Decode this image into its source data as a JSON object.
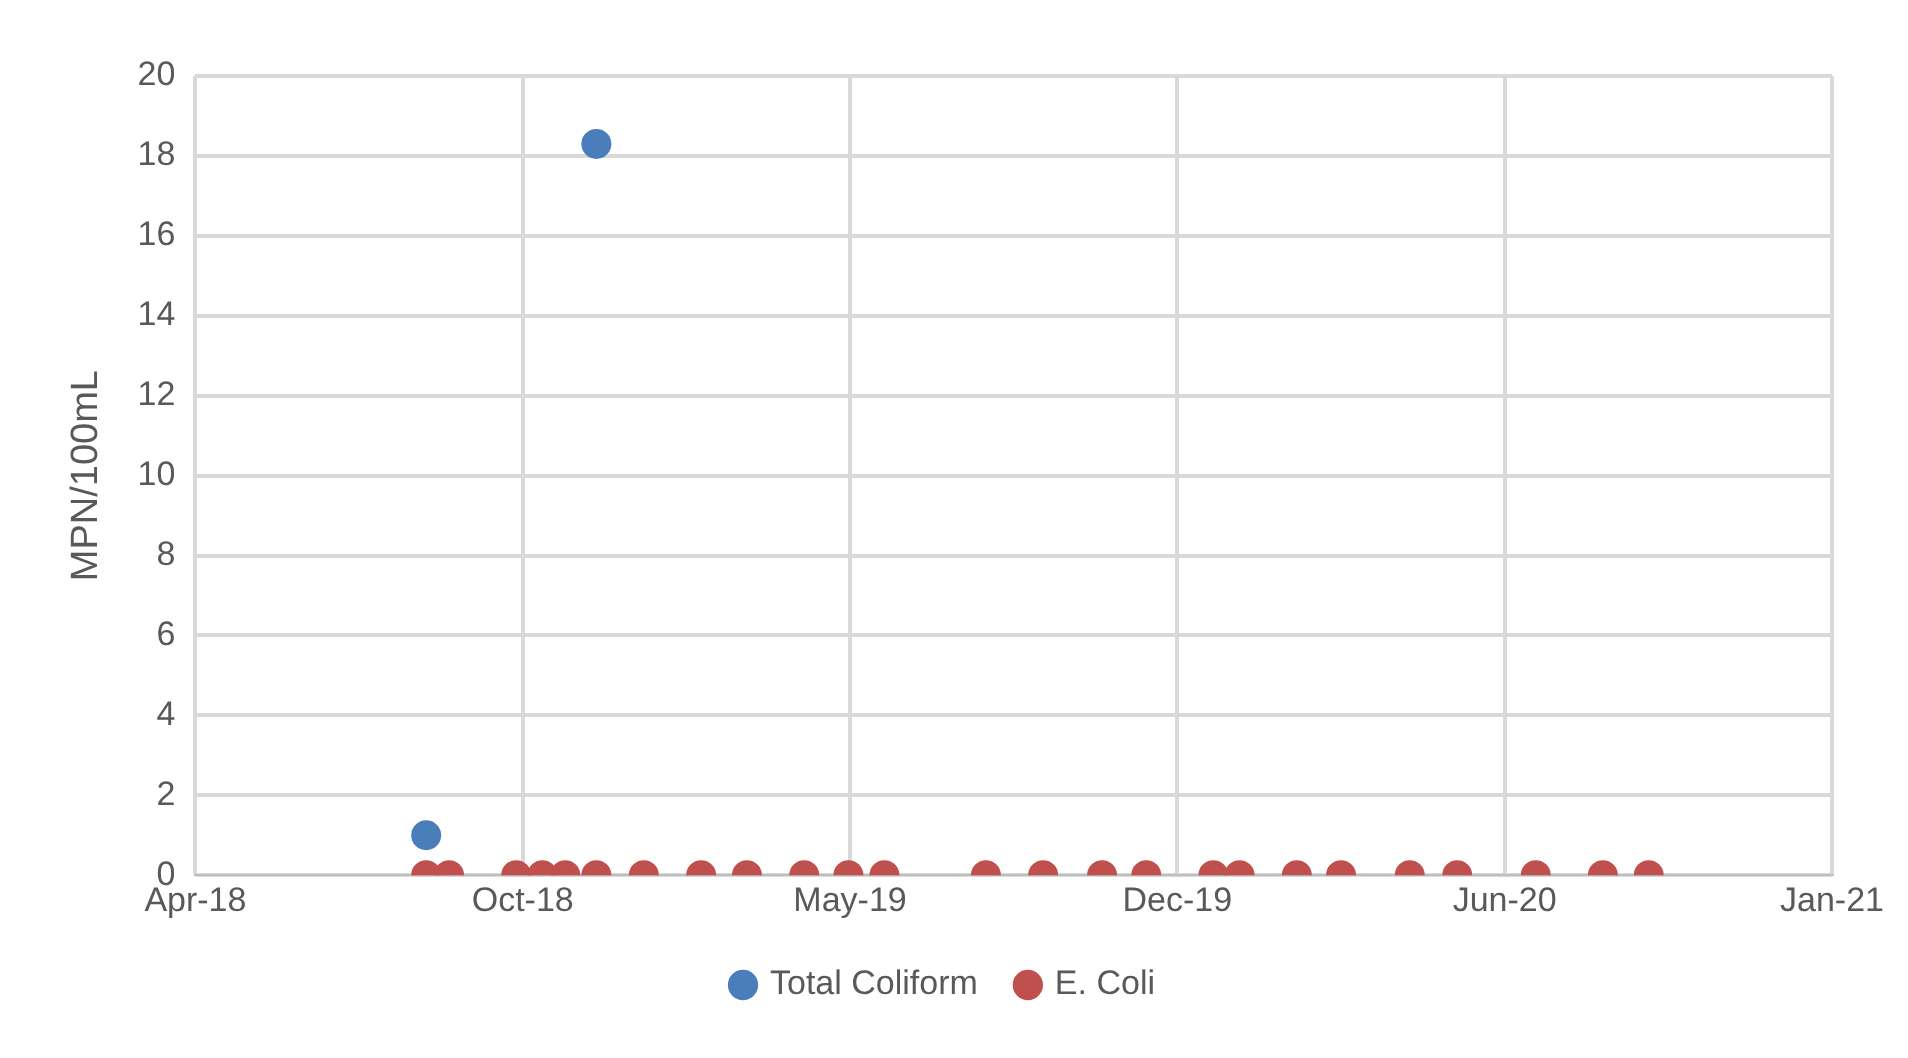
{
  "chart_data": {
    "type": "scatter",
    "ylabel": "MPN/100mL",
    "xlim": [
      "2018-04-10",
      "2021-01-04"
    ],
    "xticks": [
      {
        "value": "2018-04-10",
        "label": "Apr-18"
      },
      {
        "value": "2018-10-27",
        "label": "Oct-18"
      },
      {
        "value": "2019-05-15",
        "label": "May-19"
      },
      {
        "value": "2019-12-01",
        "label": "Dec-19"
      },
      {
        "value": "2020-06-18",
        "label": "Jun-20"
      },
      {
        "value": "2021-01-04",
        "label": "Jan-21"
      }
    ],
    "ylim": [
      0,
      20
    ],
    "yticks": [
      0,
      2,
      4,
      6,
      8,
      10,
      12,
      14,
      16,
      18,
      20
    ],
    "grid": true,
    "legend": "bottom",
    "marker": "circle",
    "series": [
      {
        "name": "Total Coliform",
        "color": "#4a7ebb",
        "x": [
          "2018-08-29",
          "2018-12-11"
        ],
        "values": [
          1,
          18.3
        ]
      },
      {
        "name": "E. Coli",
        "color": "#c0504d",
        "x": [
          "2018-08-29",
          "2018-09-12",
          "2018-10-23",
          "2018-11-08",
          "2018-11-22",
          "2018-12-11",
          "2019-01-09",
          "2019-02-13",
          "2019-03-13",
          "2019-04-17",
          "2019-05-14",
          "2019-06-05",
          "2019-08-06",
          "2019-09-10",
          "2019-10-16",
          "2019-11-12",
          "2019-12-23",
          "2020-01-08",
          "2020-02-12",
          "2020-03-10",
          "2020-04-21",
          "2020-05-20",
          "2020-07-07",
          "2020-08-17",
          "2020-09-14"
        ],
        "values": [
          0,
          0,
          0,
          0,
          0,
          0,
          0,
          0,
          0,
          0,
          0,
          0,
          0,
          0,
          0,
          0,
          0,
          0,
          0,
          0,
          0,
          0,
          0,
          0,
          0
        ]
      }
    ]
  }
}
